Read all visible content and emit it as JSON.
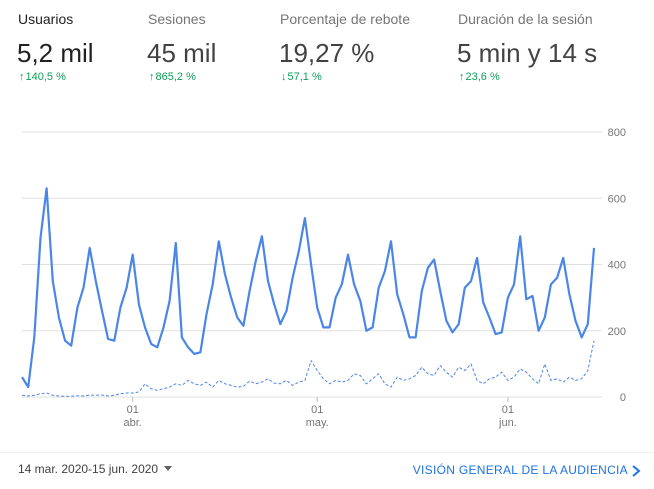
{
  "metrics": [
    {
      "name": "Usuarios",
      "value": "5,2 mil",
      "change": "140,5 %",
      "direction": "up",
      "active": true
    },
    {
      "name": "Sesiones",
      "value": "45 mil",
      "change": "865,2 %",
      "direction": "up",
      "active": false
    },
    {
      "name": "Porcentaje de rebote",
      "value": "19,27 %",
      "change": "57,1 %",
      "direction": "down",
      "active": false
    },
    {
      "name": "Duración de la sesión",
      "value": "5 min y 14 s",
      "change": "23,6 %",
      "direction": "up",
      "active": false
    }
  ],
  "footer": {
    "date_range": "14 mar. 2020-15 jun. 2020",
    "audience_link": "VISIÓN GENERAL DE LA AUDIENCIA"
  },
  "colors": {
    "accent": "#1a73e8",
    "positive": "#0f9d58",
    "line": "#4a86e8"
  },
  "icons": {
    "up": "arrow-up-icon",
    "down": "arrow-down-icon",
    "dropdown": "caret-down-icon",
    "next": "chevron-right-icon"
  },
  "chart_data": {
    "type": "line",
    "x": [
      "14 mar.",
      "15 mar.",
      "16 mar.",
      "17 mar.",
      "18 mar.",
      "19 mar.",
      "20 mar.",
      "21 mar.",
      "22 mar.",
      "23 mar.",
      "24 mar.",
      "25 mar.",
      "26 mar.",
      "27 mar.",
      "28 mar.",
      "29 mar.",
      "30 mar.",
      "31 mar.",
      "1 abr.",
      "2 abr.",
      "3 abr.",
      "4 abr.",
      "5 abr.",
      "6 abr.",
      "7 abr.",
      "8 abr.",
      "9 abr.",
      "10 abr.",
      "11 abr.",
      "12 abr.",
      "13 abr.",
      "14 abr.",
      "15 abr.",
      "16 abr.",
      "17 abr.",
      "18 abr.",
      "19 abr.",
      "20 abr.",
      "21 abr.",
      "22 abr.",
      "23 abr.",
      "24 abr.",
      "25 abr.",
      "26 abr.",
      "27 abr.",
      "28 abr.",
      "29 abr.",
      "30 abr.",
      "1 may.",
      "2 may.",
      "3 may.",
      "4 may.",
      "5 may.",
      "6 may.",
      "7 may.",
      "8 may.",
      "9 may.",
      "10 may.",
      "11 may.",
      "12 may.",
      "13 may.",
      "14 may.",
      "15 may.",
      "16 may.",
      "17 may.",
      "18 may.",
      "19 may.",
      "20 may.",
      "21 may.",
      "22 may.",
      "23 may.",
      "24 may.",
      "25 may.",
      "26 may.",
      "27 may.",
      "28 may.",
      "29 may.",
      "30 may.",
      "31 may.",
      "1 jun.",
      "2 jun.",
      "3 jun.",
      "4 jun.",
      "5 jun.",
      "6 jun.",
      "7 jun.",
      "8 jun.",
      "9 jun.",
      "10 jun.",
      "11 jun.",
      "12 jun.",
      "13 jun.",
      "14 jun.",
      "15 jun."
    ],
    "series": [
      {
        "values": [
          60,
          30,
          180,
          480,
          630,
          350,
          240,
          170,
          155,
          270,
          330,
          450,
          350,
          260,
          175,
          170,
          270,
          330,
          430,
          280,
          210,
          160,
          150,
          210,
          290,
          465,
          180,
          150,
          130,
          135,
          250,
          340,
          470,
          370,
          300,
          240,
          215,
          320,
          410,
          485,
          350,
          280,
          220,
          260,
          360,
          440,
          540,
          400,
          270,
          210,
          210,
          300,
          340,
          430,
          340,
          290,
          200,
          210,
          330,
          380,
          470,
          310,
          250,
          180,
          180,
          320,
          390,
          415,
          320,
          230,
          195,
          220,
          330,
          350,
          420,
          285,
          240,
          190,
          195,
          300,
          340,
          485,
          295,
          305,
          200,
          240,
          340,
          360,
          420,
          310,
          230,
          180,
          220,
          450
        ]
      },
      {
        "values": [
          5,
          3,
          5,
          10,
          12,
          5,
          3,
          2,
          2,
          4,
          3,
          6,
          5,
          6,
          3,
          5,
          10,
          12,
          12,
          15,
          40,
          25,
          20,
          25,
          30,
          40,
          35,
          50,
          40,
          35,
          45,
          30,
          50,
          40,
          35,
          30,
          32,
          48,
          40,
          45,
          55,
          42,
          40,
          50,
          35,
          45,
          50,
          110,
          80,
          55,
          40,
          50,
          45,
          50,
          70,
          65,
          40,
          55,
          70,
          40,
          30,
          60,
          50,
          55,
          65,
          90,
          70,
          65,
          95,
          75,
          60,
          90,
          80,
          100,
          50,
          40,
          55,
          60,
          75,
          50,
          60,
          85,
          75,
          55,
          40,
          100,
          50,
          55,
          45,
          60,
          50,
          55,
          80,
          170
        ]
      }
    ],
    "x_ticks": [
      {
        "date": "1 abr.",
        "line1": "01",
        "line2": "abr."
      },
      {
        "date": "1 may.",
        "line1": "01",
        "line2": "may."
      },
      {
        "date": "1 jun.",
        "line1": "01",
        "line2": "jun."
      }
    ],
    "y_ticks": [
      0,
      200,
      400,
      600,
      800
    ],
    "ylim": [
      0,
      800
    ],
    "grid": true
  }
}
